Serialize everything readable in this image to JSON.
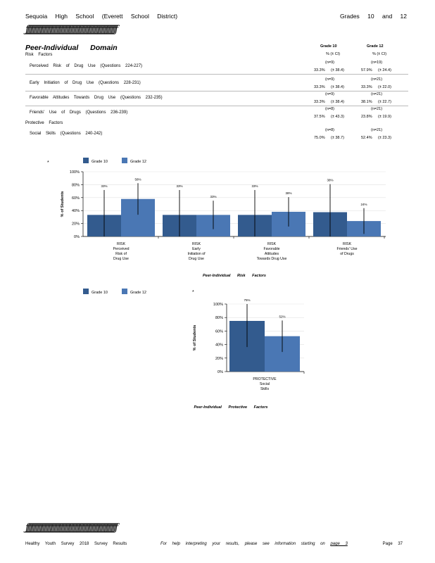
{
  "header": {
    "school": "Sequoia High School (Everett School District)",
    "grades": "Grades 10 and 12",
    "rule_chars": "ƒƒƒƒƒƒƒƒƒƒƒƒƒƒƒƒƒƒƒƒƒƒƒƒƒƒƒƒƒƒƒƒƒƒƒƒƒƒƒƒƒƒƒƒƒƒƒƒƒƒƒƒƒƒƒƒƒƒƒƒƒƒƒƒƒ"
  },
  "table": {
    "domain_title": "Peer-Individual Domain",
    "risk_heading": "Risk Factors",
    "protective_heading": "Protective Factors",
    "col_grade10": "Grade 10",
    "col_grade12": "Grade 12",
    "col_pct": "% (± CI)",
    "rows": [
      {
        "label": "Perceived Risk of Drug Use (Questions 224-227)",
        "n10": "(n=9)",
        "n12": "(n=19)",
        "p10": "33.3%",
        "ci10": "(± 38.4)",
        "p12": "57.9%",
        "ci12": "(± 24.4)"
      },
      {
        "label": "Early Initiation of Drug Use (Questions 228-231)",
        "n10": "(n=9)",
        "n12": "(n=21)",
        "p10": "33.3%",
        "ci10": "(± 38.4)",
        "p12": "33.3%",
        "ci12": "(± 22.0)"
      },
      {
        "label": "Favorable Attitudes Towards Drug Use (Questions 232-235)",
        "n10": "(n=9)",
        "n12": "(n=21)",
        "p10": "33.3%",
        "ci10": "(± 38.4)",
        "p12": "38.1%",
        "ci12": "(± 22.7)"
      },
      {
        "label": "Friends' Use of Drugs (Questions 236-239)",
        "n10": "(n=8)",
        "n12": "(n=21)",
        "p10": "37.5%",
        "ci10": "(± 43.3)",
        "p12": "23.8%",
        "ci12": "(± 19.9)"
      },
      {
        "label": "Social Skills (Questions 240-242)",
        "n10": "(n=8)",
        "n12": "(n=21)",
        "p10": "75.0%",
        "ci10": "(± 38.7)",
        "p12": "52.4%",
        "ci12": "(± 23.3)"
      }
    ]
  },
  "footer": {
    "left": "Healthy Youth Survey 2018 Survey Results",
    "middle": "For help interpreting your results, please see information starting on",
    "page_link": "page 3",
    "right": "Page 37"
  },
  "colors": {
    "grade10": "#335b8e",
    "grade12": "#4a77b4"
  },
  "chart_data": [
    {
      "type": "bar",
      "legend_corner": "*",
      "legend": [
        "Grade 10",
        "Grade 12"
      ],
      "ylabel": "% of Students",
      "xlabel": "Peer-Individual Risk Factors",
      "ylim": [
        0,
        100
      ],
      "yticks": [
        "0%",
        "20%",
        "40%",
        "60%",
        "80%",
        "100%"
      ],
      "categories": [
        [
          "RISK",
          "Perceived",
          "Risk of",
          "Drug Use"
        ],
        [
          "RISK",
          "Early",
          "Initiation of",
          "Drug Use"
        ],
        [
          "RISK",
          "Favorable",
          "Attitudes",
          "Towards Drug Use"
        ],
        [
          "RISK",
          "Friends' Use",
          "of Drugs"
        ]
      ],
      "series": [
        {
          "name": "Grade 10",
          "values": [
            33.3,
            33.3,
            33.3,
            37.5
          ],
          "ci": [
            38.4,
            38.4,
            38.4,
            43.3
          ],
          "labels": [
            "33%",
            "33%",
            "33%",
            "38%"
          ]
        },
        {
          "name": "Grade 12",
          "values": [
            57.9,
            33.3,
            38.1,
            23.8
          ],
          "ci": [
            24.4,
            22.0,
            22.7,
            19.9
          ],
          "labels": [
            "58%",
            "33%",
            "38%",
            "24%"
          ]
        }
      ]
    },
    {
      "type": "bar",
      "legend_corner": "*",
      "legend": [
        "Grade 10",
        "Grade 12"
      ],
      "ylabel": "% of Students",
      "xlabel": "Peer-Individual Protective Factors",
      "ylim": [
        0,
        100
      ],
      "yticks": [
        "0%",
        "20%",
        "40%",
        "60%",
        "80%",
        "100%"
      ],
      "categories": [
        [
          "PROTECTIVE",
          "Social",
          "Skills"
        ]
      ],
      "series": [
        {
          "name": "Grade 10",
          "values": [
            75.0
          ],
          "ci": [
            38.7
          ],
          "labels": [
            "75%"
          ]
        },
        {
          "name": "Grade 12",
          "values": [
            52.4
          ],
          "ci": [
            23.3
          ],
          "labels": [
            "52%"
          ]
        }
      ]
    }
  ]
}
